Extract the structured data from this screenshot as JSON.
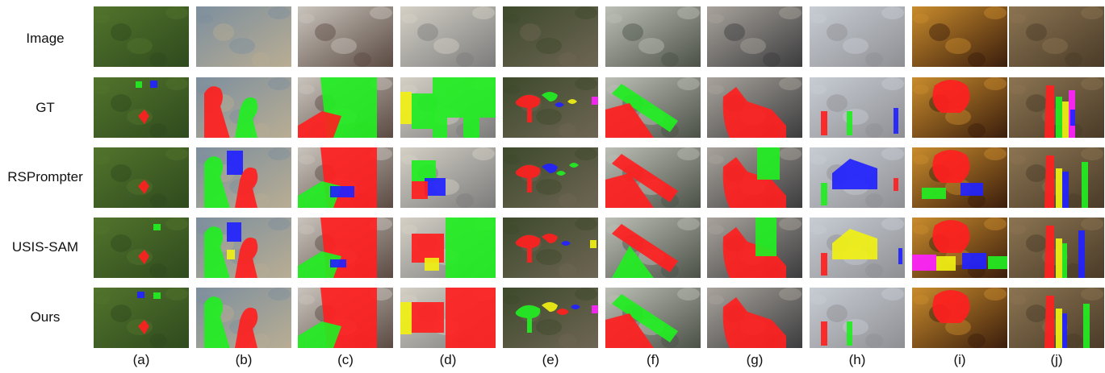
{
  "rows": [
    {
      "label": "Image"
    },
    {
      "label": "GT"
    },
    {
      "label": "RSPrompter"
    },
    {
      "label": "USIS-SAM"
    },
    {
      "label": "Ours"
    }
  ],
  "columns": [
    {
      "label": "(a)",
      "scene": "lotus-pond",
      "bg": "#2f4a1e",
      "bg2": "#52742c"
    },
    {
      "label": "(b)",
      "scene": "hospital-staff",
      "bg": "#b9ad93",
      "bg2": "#7d8f9e"
    },
    {
      "label": "(c)",
      "scene": "roast-bag",
      "bg": "#5a4a42",
      "bg2": "#c9c4bd"
    },
    {
      "label": "(d)",
      "scene": "lego-walker",
      "bg": "#7c7c7c",
      "bg2": "#d4d0c6"
    },
    {
      "label": "(e)",
      "scene": "mushrooms",
      "bg": "#6e6554",
      "bg2": "#3d4a2b"
    },
    {
      "label": "(f)",
      "scene": "cigar-hand",
      "bg": "#4c5148",
      "bg2": "#bcbfb6"
    },
    {
      "label": "(g)",
      "scene": "bulldog-pillow",
      "bg": "#3c3c3e",
      "bg2": "#a8a39c"
    },
    {
      "label": "(h)",
      "scene": "street-building",
      "bg": "#8f8f93",
      "bg2": "#c7cdd4"
    },
    {
      "label": "(i)",
      "scene": "food-bowls",
      "bg": "#3a1d0c",
      "bg2": "#c98c2d"
    },
    {
      "label": "(j)",
      "scene": "group-photo",
      "bg": "#4a3b28",
      "bg2": "#8b7452"
    }
  ],
  "mask_colors": {
    "red": "#ff1f1f",
    "green": "#22ee22",
    "blue": "#2222ff",
    "yellow": "#f0f014",
    "magenta": "#ff22ff"
  }
}
